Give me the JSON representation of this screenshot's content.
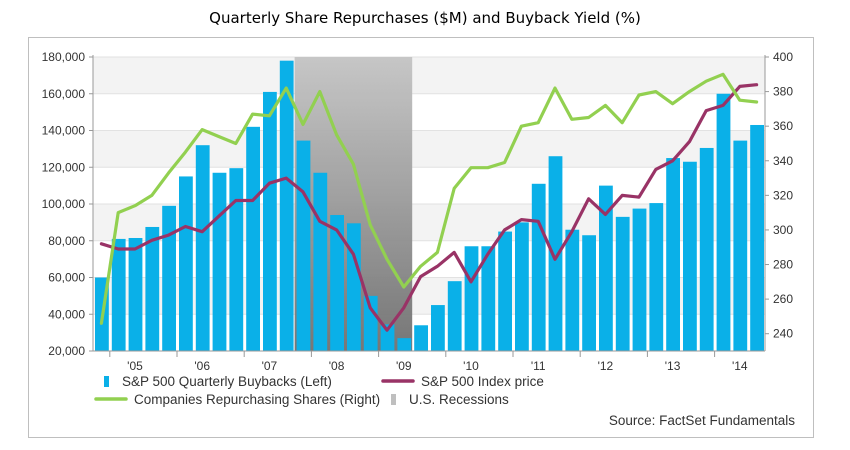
{
  "chart_data": {
    "type": "bar+line",
    "title": "Quarterly Share Repurchases ($M) and Buyback Yield (%)",
    "left_axis": {
      "min": 20000,
      "max": 180000,
      "ticks": [
        20000,
        40000,
        60000,
        80000,
        100000,
        120000,
        140000,
        160000,
        180000
      ],
      "tick_labels": [
        "20,000",
        "40,000",
        "60,000",
        "80,000",
        "100,000",
        "120,000",
        "140,000",
        "160,000",
        "180,000"
      ]
    },
    "right_axis": {
      "min": 230,
      "max": 400,
      "ticks": [
        240,
        260,
        280,
        300,
        320,
        340,
        360,
        380,
        400
      ],
      "tick_labels": [
        "240",
        "260",
        "280",
        "300",
        "320",
        "340",
        "360",
        "380",
        "400"
      ]
    },
    "x_tick_labels": [
      "'05",
      "'06",
      "'07",
      "'08",
      "'09",
      "'10",
      "'11",
      "'12",
      "'13",
      "'14"
    ],
    "quarters_start": "2004Q4",
    "quarters_end": "2014Q2",
    "recession": {
      "start": "2007Q4",
      "end": "2009Q2"
    },
    "series": [
      {
        "name": "S&P 500 Quarterly Buybacks (Left)",
        "kind": "bar",
        "axis": "left",
        "color": "#0ab0e8",
        "values": [
          60000,
          81000,
          81500,
          87500,
          99000,
          115000,
          132000,
          117000,
          119500,
          142000,
          161000,
          178000,
          134500,
          117000,
          94000,
          89500,
          50000,
          34500,
          27000,
          34000,
          45000,
          58000,
          77000,
          77000,
          85000,
          90000,
          111000,
          126000,
          86000,
          83000,
          110000,
          93000,
          97500,
          100500,
          125000,
          123000,
          130500,
          160000,
          134500,
          143000
        ]
      },
      {
        "name": "S&P 500 Index price",
        "kind": "line",
        "axis": "right",
        "color": "#993366",
        "values": [
          292,
          289,
          289,
          294,
          297,
          302,
          299,
          308,
          317,
          317,
          327,
          330,
          322,
          305,
          300,
          286,
          255,
          242,
          255,
          273,
          279,
          287,
          270,
          286,
          300,
          306,
          305,
          283,
          299,
          318,
          309,
          320,
          319,
          335,
          340,
          351,
          369,
          372,
          383,
          384
        ]
      },
      {
        "name": "Companies Repurchasing Shares (Right)",
        "kind": "line",
        "axis": "right",
        "color": "#92d050",
        "values": [
          246,
          310,
          314,
          320,
          333,
          345,
          358,
          354,
          350,
          367,
          366,
          382,
          361,
          380,
          355,
          338,
          303,
          283,
          267,
          279,
          287,
          324,
          336,
          336,
          339,
          360,
          362,
          382,
          364,
          365,
          372,
          362,
          378,
          380,
          373,
          380,
          386,
          390,
          375,
          374
        ]
      }
    ],
    "legend": [
      {
        "label": "S&P 500 Quarterly Buybacks (Left)",
        "marker": "bar",
        "color": "#0ab0e8"
      },
      {
        "label": "S&P 500 Index price",
        "marker": "line",
        "color": "#993366"
      },
      {
        "label": "Companies Repurchasing Shares (Right)",
        "marker": "line",
        "color": "#92d050"
      },
      {
        "label": "U.S. Recessions",
        "marker": "bar",
        "color": "#bfbfbf"
      }
    ],
    "source": "Source: FactSet Fundamentals",
    "grid": true
  }
}
